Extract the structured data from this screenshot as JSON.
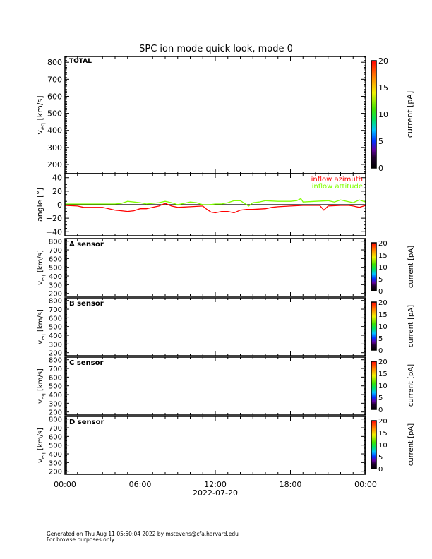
{
  "title": "SPC ion mode quick look, mode 0",
  "footer": {
    "generated": "Generated on Thu Aug 11 05:50:04 2022 by mstevens@cfa.harvard.edu",
    "note": "For browse purposes only."
  },
  "chart_data": [
    {
      "type": "heatmap",
      "panel_label": "TOTAL",
      "ylabel": "v_eq [km/s]",
      "yticks": [
        200,
        300,
        400,
        500,
        600,
        700,
        800
      ],
      "ylim": [
        146,
        834
      ],
      "colorbar": {
        "label": "current [pA]",
        "ticks": [
          0,
          5,
          10,
          15,
          20
        ],
        "range": [
          0,
          20
        ]
      },
      "values": []
    },
    {
      "type": "line",
      "ylabel": "angle [°]",
      "yticks": [
        -40,
        -20,
        0,
        20,
        40
      ],
      "ylim": [
        -46,
        46
      ],
      "zero_line": true,
      "series": [
        {
          "name": "inflow azimuth",
          "color": "#ff0000",
          "x": [
            "00:00",
            "01:00",
            "01:30",
            "02:00",
            "03:00",
            "04:00",
            "04:30",
            "05:00",
            "05:30",
            "06:00",
            "06:30",
            "07:00",
            "07:30",
            "08:00",
            "08:30",
            "09:00",
            "10:00",
            "11:00",
            "11:20",
            "11:40",
            "12:00",
            "12:30",
            "13:00",
            "13:30",
            "14:00",
            "14:30",
            "15:00",
            "16:00",
            "16:30",
            "17:00",
            "18:00",
            "19:00",
            "20:00",
            "20:20",
            "20:40",
            "21:00",
            "22:00",
            "22:40",
            "23:00",
            "23:30",
            "24:00"
          ],
          "values": [
            -1,
            -2,
            -4,
            -4,
            -4,
            -8,
            -9,
            -10,
            -9,
            -6,
            -6,
            -4,
            -2,
            2,
            -2,
            -4,
            -3,
            -2,
            -7,
            -11,
            -12,
            -10,
            -10,
            -12,
            -8,
            -7,
            -7,
            -6,
            -4,
            -3,
            -2,
            -1,
            -1,
            -1,
            -8,
            -2,
            -1,
            -1,
            -2,
            -4,
            -1
          ]
        },
        {
          "name": "inflow attitude",
          "color": "#80ff00",
          "x": [
            "00:00",
            "01:00",
            "02:00",
            "03:00",
            "04:00",
            "04:30",
            "05:00",
            "05:30",
            "06:00",
            "06:30",
            "07:00",
            "07:30",
            "08:00",
            "08:30",
            "09:00",
            "09:30",
            "10:00",
            "10:30",
            "11:00",
            "11:30",
            "12:00",
            "12:30",
            "13:00",
            "13:30",
            "14:00",
            "14:20",
            "14:40",
            "15:00",
            "15:30",
            "16:00",
            "17:00",
            "18:00",
            "18:30",
            "18:50",
            "19:00",
            "20:00",
            "21:00",
            "21:30",
            "22:00",
            "22:30",
            "23:00",
            "23:30",
            "24:00"
          ],
          "values": [
            1,
            1,
            1,
            1,
            1,
            2,
            5,
            4,
            3,
            1,
            2,
            3,
            5,
            3,
            0,
            2,
            4,
            3,
            0,
            0,
            1,
            1,
            3,
            6,
            6,
            2,
            -2,
            3,
            4,
            6,
            5,
            5,
            6,
            9,
            4,
            5,
            6,
            4,
            7,
            5,
            3,
            7,
            4
          ]
        }
      ]
    },
    {
      "type": "heatmap",
      "panel_label": "A sensor",
      "ylabel": "v_eq [km/s]",
      "yticks": [
        200,
        300,
        400,
        500,
        600,
        700,
        800
      ],
      "ylim": [
        165,
        830
      ],
      "colorbar": {
        "label": "current [pA]",
        "ticks": [
          0,
          5,
          10,
          15,
          20
        ],
        "range": [
          0,
          20
        ]
      },
      "values": []
    },
    {
      "type": "heatmap",
      "panel_label": "B sensor",
      "ylabel": "v_eq [km/s]",
      "yticks": [
        200,
        300,
        400,
        500,
        600,
        700,
        800
      ],
      "ylim": [
        165,
        830
      ],
      "colorbar": {
        "label": "current [pA]",
        "ticks": [
          0,
          5,
          10,
          15,
          20
        ],
        "range": [
          0,
          20
        ]
      },
      "values": []
    },
    {
      "type": "heatmap",
      "panel_label": "C sensor",
      "ylabel": "v_eq [km/s]",
      "yticks": [
        200,
        300,
        400,
        500,
        600,
        700,
        800
      ],
      "ylim": [
        165,
        830
      ],
      "colorbar": {
        "label": "current [pA]",
        "ticks": [
          0,
          5,
          10,
          15,
          20
        ],
        "range": [
          0,
          20
        ]
      },
      "values": []
    },
    {
      "type": "heatmap",
      "panel_label": "D sensor",
      "ylabel": "v_eq [km/s]",
      "yticks": [
        200,
        300,
        400,
        500,
        600,
        700,
        800
      ],
      "ylim": [
        165,
        830
      ],
      "colorbar": {
        "label": "current [pA]",
        "ticks": [
          0,
          5,
          10,
          15,
          20
        ],
        "range": [
          0,
          20
        ]
      },
      "values": []
    }
  ],
  "xaxis": {
    "ticks": [
      "00:00",
      "06:00",
      "12:00",
      "18:00",
      "00:00"
    ],
    "date": "2022-07-20"
  }
}
